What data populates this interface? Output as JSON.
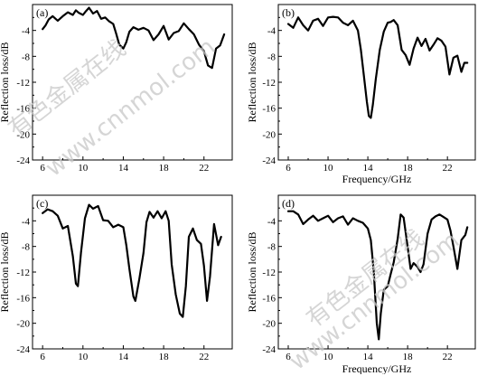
{
  "colors": {
    "line": "#000000",
    "axis": "#000000",
    "watermark": "#c8c8c8"
  },
  "watermark": {
    "cn": "有色金属在线",
    "url": "www.cnnmol.com"
  },
  "chart_data": [
    {
      "type": "line",
      "label": "(a)",
      "xlabel": "",
      "ylabel": "Reflection loss/dB",
      "xlim": [
        5,
        24.8
      ],
      "ylim": [
        -24,
        0
      ],
      "xticks": [
        6,
        10,
        14,
        18,
        22
      ],
      "yticks": [
        -24,
        -20,
        -16,
        -12,
        -8,
        -4
      ],
      "series": [
        {
          "x": [
            6,
            6.3,
            6.6,
            7,
            7.5,
            8,
            8.5,
            9,
            9.3,
            9.6,
            10,
            10.3,
            10.6,
            11,
            11.4,
            11.8,
            12.2,
            12.6,
            13,
            13.3,
            13.6,
            14,
            14.3,
            14.6,
            15,
            15.5,
            16,
            16.5,
            17,
            17.5,
            18,
            18.5,
            19,
            19.5,
            20,
            20.5,
            21,
            21.5,
            22,
            22.4,
            22.8,
            23.2,
            23.6,
            24
          ],
          "y": [
            -3.8,
            -3.2,
            -2.3,
            -1.8,
            -2.5,
            -1.8,
            -1.2,
            -1.6,
            -0.9,
            -1.3,
            -1.6,
            -1,
            -0.5,
            -1.4,
            -1,
            -2.2,
            -2,
            -2.6,
            -3,
            -4.5,
            -6.2,
            -6.8,
            -5.8,
            -4.2,
            -3.5,
            -3.9,
            -3.6,
            -4,
            -5.5,
            -4.6,
            -3.3,
            -5.4,
            -4.4,
            -4.1,
            -2.9,
            -3.8,
            -4.6,
            -6.2,
            -7.2,
            -9.4,
            -9.8,
            -6.8,
            -6.3,
            -4.6
          ]
        }
      ]
    },
    {
      "type": "line",
      "label": "(b)",
      "xlabel": "Frequency/GHz",
      "ylabel": "Reflection loss/dB",
      "xlim": [
        5,
        24.8
      ],
      "ylim": [
        -24,
        0
      ],
      "xticks": [
        6,
        10,
        14,
        18,
        22
      ],
      "yticks": [
        -24,
        -20,
        -16,
        -12,
        -8,
        -4
      ],
      "series": [
        {
          "x": [
            6,
            6.5,
            7,
            7.5,
            8,
            8.5,
            9,
            9.5,
            10,
            10.5,
            11,
            11.5,
            12,
            12.5,
            13,
            13.3,
            13.6,
            13.9,
            14.1,
            14.3,
            14.5,
            14.8,
            15.2,
            15.6,
            16,
            16.3,
            16.6,
            17,
            17.4,
            17.8,
            18.2,
            18.6,
            19,
            19.4,
            19.8,
            20.2,
            20.6,
            21,
            21.4,
            21.8,
            22.2,
            22.6,
            23,
            23.4,
            23.7,
            24
          ],
          "y": [
            -3,
            -3.6,
            -2,
            -3.2,
            -4,
            -2.5,
            -2.2,
            -3.3,
            -2,
            -1.9,
            -2,
            -2.8,
            -3.2,
            -2.5,
            -4,
            -7,
            -11,
            -15,
            -17.2,
            -17.5,
            -15.5,
            -11.5,
            -7,
            -4.2,
            -2.8,
            -2.7,
            -2.4,
            -3.2,
            -7,
            -7.8,
            -9.3,
            -6.8,
            -5.1,
            -6.4,
            -5.3,
            -7.1,
            -6.2,
            -5.2,
            -5.6,
            -6.5,
            -10.8,
            -8.2,
            -7.9,
            -10.4,
            -9,
            -9
          ]
        }
      ]
    },
    {
      "type": "line",
      "label": "(c)",
      "xlabel": "",
      "ylabel": "Reflection loss/dB",
      "xlim": [
        5,
        24.8
      ],
      "ylim": [
        -24,
        0
      ],
      "xticks": [
        6,
        10,
        14,
        18,
        22
      ],
      "yticks": [
        -24,
        -20,
        -16,
        -12,
        -8,
        -4
      ],
      "series": [
        {
          "x": [
            6,
            6.5,
            7,
            7.5,
            8,
            8.5,
            9,
            9.3,
            9.5,
            9.8,
            10.2,
            10.6,
            11,
            11.5,
            12,
            12.5,
            13,
            13.5,
            14,
            14.3,
            14.6,
            15,
            15.2,
            15.6,
            16,
            16.3,
            16.6,
            17,
            17.4,
            17.8,
            18.2,
            18.5,
            18.8,
            19.2,
            19.6,
            19.9,
            20.2,
            20.5,
            20.9,
            21.3,
            21.7,
            22,
            22.3,
            22.6,
            23,
            23.4,
            23.7
          ],
          "y": [
            -2.8,
            -2.2,
            -2.5,
            -3.2,
            -5.2,
            -4.8,
            -9.5,
            -13.8,
            -14.2,
            -9,
            -3.6,
            -1.5,
            -2.1,
            -1.7,
            -3.9,
            -4,
            -5,
            -4.6,
            -5,
            -7.8,
            -11.5,
            -15.8,
            -16.5,
            -13,
            -9,
            -4.2,
            -2.6,
            -3.5,
            -2.5,
            -3.6,
            -2.5,
            -4,
            -10.8,
            -15.5,
            -18.5,
            -19,
            -14.2,
            -6.5,
            -5.2,
            -7,
            -7.6,
            -11,
            -16.5,
            -12.7,
            -4.5,
            -7.8,
            -6.5
          ]
        }
      ]
    },
    {
      "type": "line",
      "label": "(d)",
      "xlabel": "Frequency/GHz",
      "ylabel": "Reflection loss/dB",
      "xlim": [
        5,
        24.8
      ],
      "ylim": [
        -24,
        0
      ],
      "xticks": [
        6,
        10,
        14,
        18,
        22
      ],
      "yticks": [
        -24,
        -20,
        -16,
        -12,
        -8,
        -4
      ],
      "series": [
        {
          "x": [
            6,
            6.5,
            7,
            7.5,
            8,
            8.5,
            9,
            9.5,
            10,
            10.5,
            11,
            11.5,
            12,
            12.5,
            13,
            13.5,
            14,
            14.3,
            14.6,
            14.9,
            15.1,
            15.3,
            15.6,
            16,
            16.3,
            16.6,
            17,
            17.3,
            17.6,
            18,
            18.3,
            18.6,
            19,
            19.3,
            19.6,
            20,
            20.4,
            20.8,
            21.2,
            21.6,
            22,
            22.3,
            22.6,
            23,
            23.4,
            23.8,
            24
          ],
          "y": [
            -2.5,
            -2.5,
            -3,
            -4.5,
            -3.8,
            -3.2,
            -4,
            -3.6,
            -3.2,
            -4.2,
            -3.6,
            -3.3,
            -4.6,
            -3.6,
            -4,
            -4.3,
            -5.2,
            -7,
            -12,
            -20,
            -22.5,
            -18.5,
            -14.8,
            -14.2,
            -12.3,
            -10.5,
            -6.8,
            -3,
            -3.5,
            -8,
            -11.5,
            -10.6,
            -11.2,
            -12,
            -10.8,
            -6,
            -3.8,
            -3.3,
            -3,
            -3.4,
            -3.8,
            -5.5,
            -8,
            -11.5,
            -7,
            -6.2,
            -5
          ]
        }
      ]
    }
  ]
}
